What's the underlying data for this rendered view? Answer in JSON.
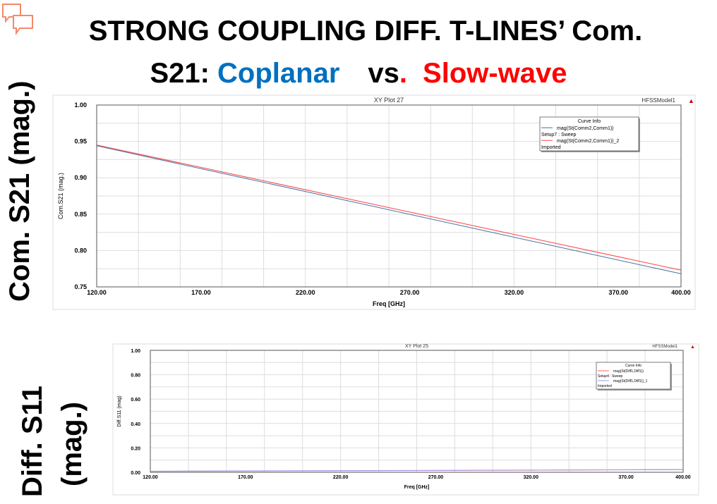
{
  "slide": {
    "title_line1": "STRONG COUPLING DIFF. T-LINES’ Com.",
    "title_line2_prefix": "S21: ",
    "title_coplanar": "Coplanar",
    "title_vs": "vs",
    "title_dot": ".",
    "title_slowwave": "Slow-wave",
    "side_label_top": "Com. S21 (mag.)",
    "side_label_bottom_1": "Diff. S11",
    "side_label_bottom_2": "(mag.)",
    "comment_icon": "speech-bubbles-icon"
  },
  "chart_data": [
    {
      "type": "line",
      "title": "XY Plot 27",
      "model": "HFSSModel1",
      "xlabel": "Freq [GHz]",
      "ylabel": "Com.S21 (mag.)",
      "xlim": [
        120,
        400
      ],
      "ylim": [
        0.75,
        1.0
      ],
      "xticks": [
        "120.00",
        "170.00",
        "220.00",
        "270.00",
        "320.00",
        "370.00",
        "400.00"
      ],
      "yticks": [
        "0.75",
        "0.80",
        "0.85",
        "0.90",
        "0.95",
        "1.00"
      ],
      "legend_title": "Curve Info",
      "legend_placement": "top-right",
      "grid": true,
      "series": [
        {
          "name": "mag(St(Comm2,Comm1))",
          "sub": "Setup7 : Sweep",
          "color": "#4a6fa5",
          "x": [
            120,
            400
          ],
          "y": [
            0.944,
            0.768
          ]
        },
        {
          "name": "mag(St(Comm2,Comm1))_2",
          "sub": "Imported",
          "color": "#ff4040",
          "x": [
            120,
            400
          ],
          "y": [
            0.945,
            0.773
          ]
        }
      ]
    },
    {
      "type": "line",
      "title": "XY Plot 25",
      "model": "HFSSModel1",
      "xlabel": "Freq [GHz]",
      "ylabel": "Diff.S11 (mag)",
      "xlim": [
        120,
        400
      ],
      "ylim": [
        0,
        1.0
      ],
      "xticks": [
        "120.00",
        "170.00",
        "220.00",
        "270.00",
        "320.00",
        "370.00",
        "400.00"
      ],
      "yticks": [
        "0.00",
        "0.20",
        "0.40",
        "0.60",
        "0.80",
        "1.00"
      ],
      "legend_title": "Curve Info",
      "legend_placement": "top-right",
      "grid": true,
      "series": [
        {
          "name": "mag(St(Diff1,Diff1))",
          "sub": "Setup4 : Sweep",
          "color": "#ff6060",
          "x": [
            120,
            200,
            300,
            400
          ],
          "y": [
            0.008,
            0.012,
            0.016,
            0.022
          ]
        },
        {
          "name": "mag(St(Diff1,Diff1))_1",
          "sub": "Imported",
          "color": "#9999ee",
          "x": [
            120,
            200,
            300,
            400
          ],
          "y": [
            0.009,
            0.013,
            0.017,
            0.023
          ]
        }
      ]
    }
  ]
}
